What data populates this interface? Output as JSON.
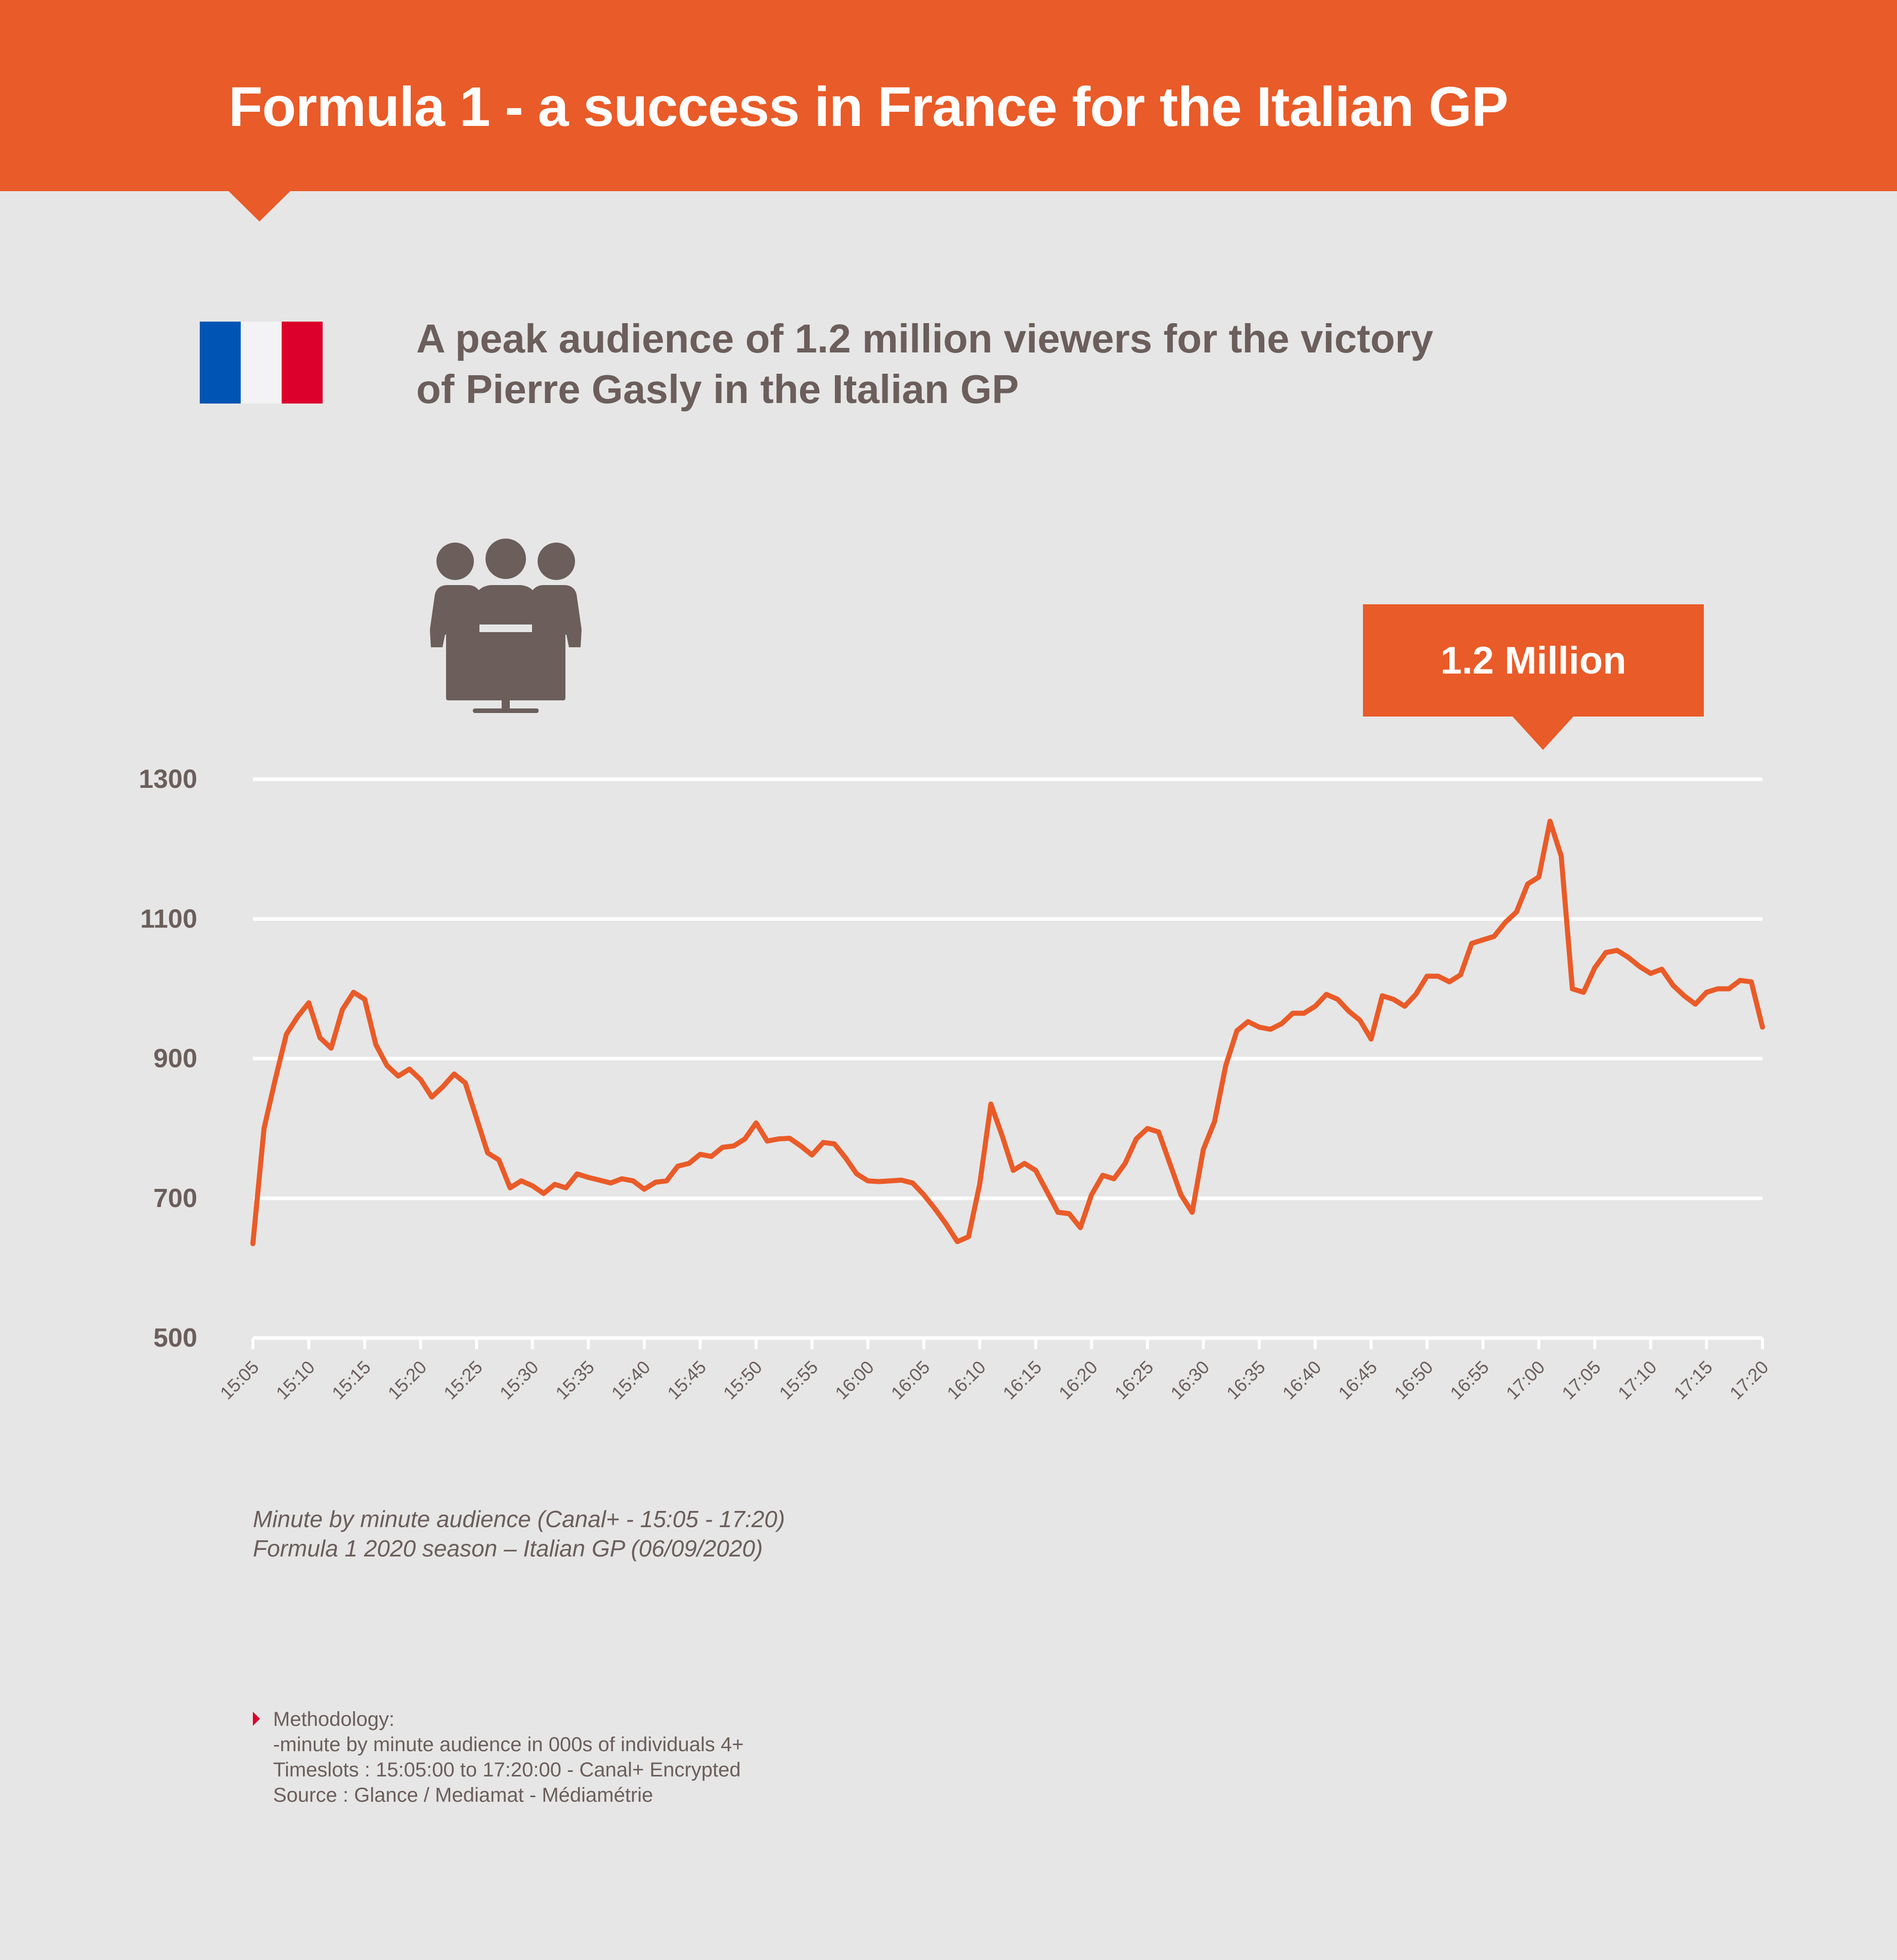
{
  "header": {
    "title": "Formula 1 - a success in France for the Italian GP"
  },
  "subtitle": {
    "line1": "A peak audience of 1.2 million viewers for the victory",
    "line2": "of Pierre Gasly in the Italian GP"
  },
  "icons": {
    "flag": "france-flag-icon",
    "audience": "tv-audience-icon"
  },
  "callout": {
    "label": "1.2 Million"
  },
  "colors": {
    "accent": "#e95b28",
    "text": "#6b5e5b",
    "background": "#e6e6e6",
    "grid": "#ffffff"
  },
  "chart_data": {
    "type": "line",
    "ylim": [
      500,
      1300
    ],
    "yticks": [
      500,
      700,
      900,
      1100,
      1300
    ],
    "x_range": [
      "15:05",
      "17:20"
    ],
    "xticks": [
      "15:05",
      "15:10",
      "15:15",
      "15:20",
      "15:25",
      "15:30",
      "15:35",
      "15:40",
      "15:45",
      "15:50",
      "15:55",
      "16:00",
      "16:05",
      "16:10",
      "16:15",
      "16:20",
      "16:25",
      "16:30",
      "16:35",
      "16:40",
      "16:45",
      "16:50",
      "16:55",
      "17:00",
      "17:05",
      "17:10",
      "17:15",
      "17:20"
    ],
    "grid": "horizontal",
    "series": [
      {
        "color": "#e95b28",
        "x": [
          "15:05",
          "15:06",
          "15:07",
          "15:08",
          "15:09",
          "15:10",
          "15:11",
          "15:12",
          "15:13",
          "15:14",
          "15:15",
          "15:16",
          "15:17",
          "15:18",
          "15:19",
          "15:20",
          "15:21",
          "15:22",
          "15:23",
          "15:24",
          "15:25",
          "15:26",
          "15:27",
          "15:28",
          "15:29",
          "15:30",
          "15:31",
          "15:32",
          "15:33",
          "15:34",
          "15:35",
          "15:36",
          "15:37",
          "15:38",
          "15:39",
          "15:40",
          "15:41",
          "15:42",
          "15:43",
          "15:44",
          "15:45",
          "15:46",
          "15:47",
          "15:48",
          "15:49",
          "15:50",
          "15:51",
          "15:52",
          "15:53",
          "15:54",
          "15:55",
          "15:56",
          "15:57",
          "15:58",
          "15:59",
          "16:00",
          "16:01",
          "16:02",
          "16:03",
          "16:04",
          "16:05",
          "16:06",
          "16:07",
          "16:08",
          "16:09",
          "16:10",
          "16:11",
          "16:12",
          "16:13",
          "16:14",
          "16:15",
          "16:16",
          "16:17",
          "16:18",
          "16:19",
          "16:20",
          "16:21",
          "16:22",
          "16:23",
          "16:24",
          "16:25",
          "16:26",
          "16:27",
          "16:28",
          "16:29",
          "16:30",
          "16:31",
          "16:32",
          "16:33",
          "16:34",
          "16:35",
          "16:36",
          "16:37",
          "16:38",
          "16:39",
          "16:40",
          "16:41",
          "16:42",
          "16:43",
          "16:44",
          "16:45",
          "16:46",
          "16:47",
          "16:48",
          "16:49",
          "16:50",
          "16:51",
          "16:52",
          "16:53",
          "16:54",
          "16:55",
          "16:56",
          "16:57",
          "16:58",
          "16:59",
          "17:00",
          "17:01",
          "17:02",
          "17:03",
          "17:04",
          "17:05",
          "17:06",
          "17:07",
          "17:08",
          "17:09",
          "17:10",
          "17:11",
          "17:12",
          "17:13",
          "17:14",
          "17:15",
          "17:16",
          "17:17",
          "17:18",
          "17:19",
          "17:20"
        ],
        "values": [
          635,
          800,
          870,
          935,
          960,
          980,
          930,
          915,
          970,
          995,
          985,
          920,
          890,
          875,
          885,
          870,
          845,
          860,
          878,
          865,
          815,
          765,
          755,
          715,
          725,
          718,
          707,
          720,
          715,
          735,
          730,
          726,
          722,
          728,
          725,
          713,
          723,
          725,
          746,
          750,
          763,
          760,
          773,
          775,
          785,
          808,
          782,
          785,
          786,
          775,
          762,
          780,
          778,
          758,
          735,
          725,
          724,
          725,
          726,
          722,
          705,
          685,
          663,
          638,
          645,
          720,
          835,
          790,
          740,
          750,
          740,
          710,
          680,
          678,
          658,
          705,
          733,
          728,
          750,
          785,
          800,
          795,
          750,
          705,
          680,
          770,
          810,
          890,
          940,
          953,
          945,
          942,
          950,
          965,
          965,
          975,
          992,
          985,
          968,
          955,
          928,
          990,
          985,
          975,
          992,
          1018,
          1018,
          1010,
          1020,
          1065,
          1070,
          1075,
          1095,
          1110,
          1150,
          1160,
          1240,
          1190,
          1000,
          995,
          1030,
          1052,
          1055,
          1045,
          1032,
          1022,
          1028,
          1005,
          990,
          978,
          995,
          1000,
          1000,
          1012,
          1010,
          945
        ]
      }
    ]
  },
  "notes": {
    "line1": "Minute by minute audience (Canal+ - 15:05 - 17:20)",
    "line2": "Formula 1 2020 season – Italian GP (06/09/2020)"
  },
  "methodology": {
    "heading": "Methodology:",
    "line1": "-minute by minute audience in 000s of individuals 4+",
    "line2": "Timeslots : 15:05:00 to 17:20:00 - Canal+ Encrypted",
    "line3": "Source : Glance / Mediamat - Médiamétrie"
  }
}
